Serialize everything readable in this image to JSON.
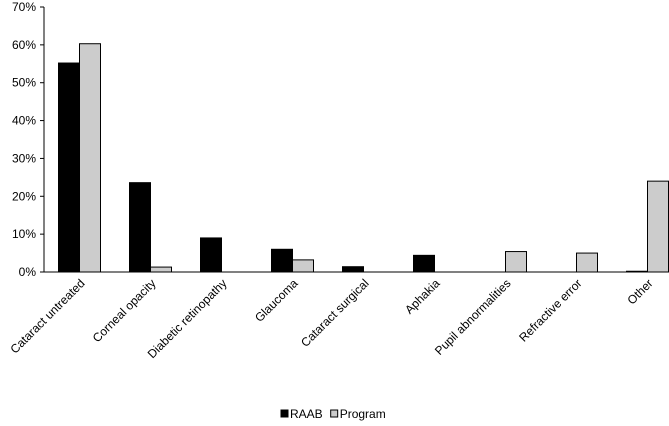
{
  "chart_data": {
    "type": "bar",
    "title": "",
    "xlabel": "",
    "ylabel": "",
    "ylim": [
      0,
      70
    ],
    "yticks": [
      "0%",
      "10%",
      "20%",
      "30%",
      "40%",
      "50%",
      "60%",
      "70%"
    ],
    "grid": false,
    "legend_position": "bottom",
    "categories": [
      "Cataract untreated",
      "Corneal opacity",
      "Diabetic retinopathy",
      "Glaucoma",
      "Cataract surgical",
      "Aphakia",
      "Pupil abnormalities",
      "Refractive error",
      "Other"
    ],
    "series": [
      {
        "name": "RAAB",
        "color": "#000000",
        "values": [
          55.2,
          23.6,
          9.0,
          6.0,
          1.4,
          4.4,
          0,
          0,
          0.2
        ]
      },
      {
        "name": "Program",
        "color": "#cccccc",
        "values": [
          60.3,
          1.3,
          0,
          3.2,
          0,
          0,
          5.4,
          5.0,
          24.0
        ]
      }
    ]
  }
}
